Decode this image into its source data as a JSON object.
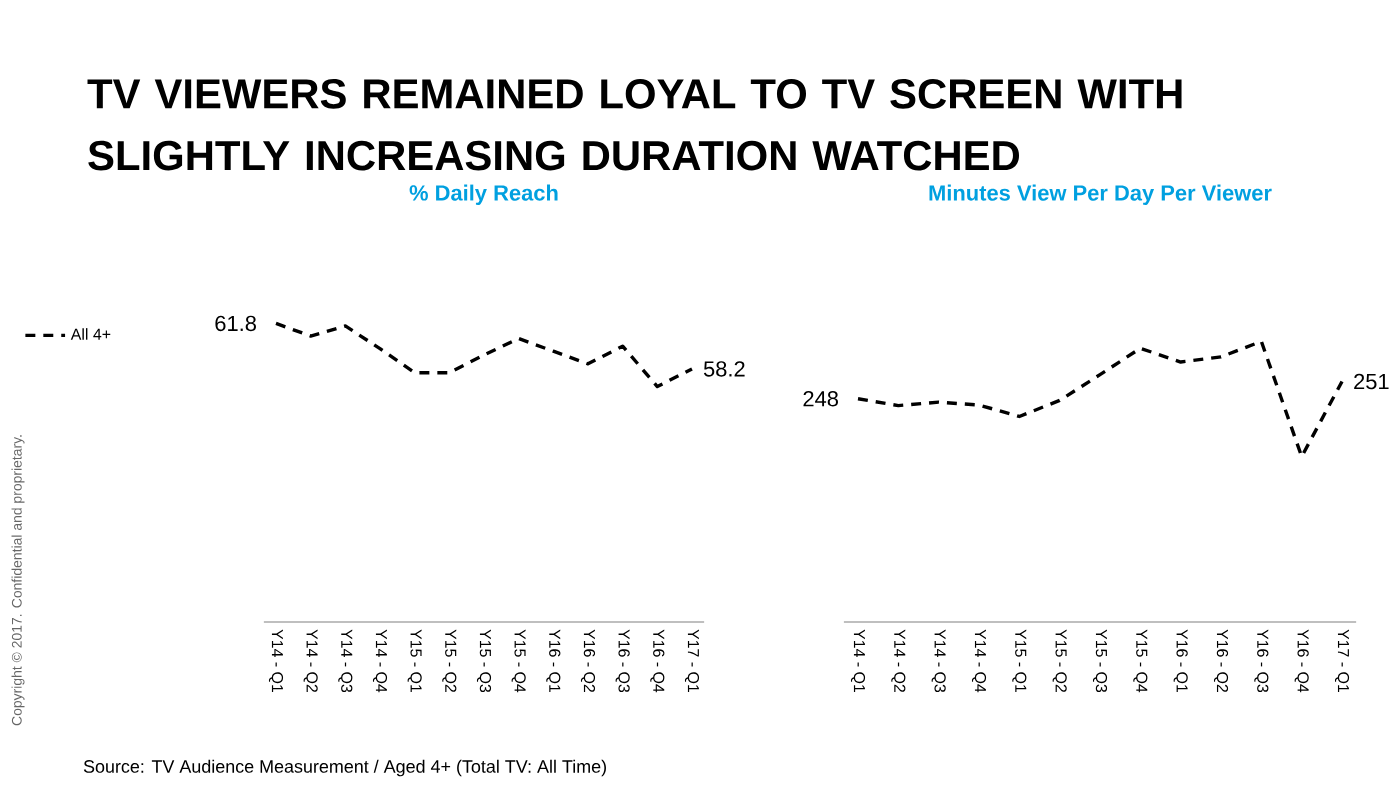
{
  "chart_data": [
    {
      "type": "line",
      "title": "% Daily Reach",
      "categories": [
        "Y14 - Q1",
        "Y14 - Q2",
        "Y14 - Q3",
        "Y14 - Q4",
        "Y15 - Q1",
        "Y15 - Q2",
        "Y15 - Q3",
        "Y15 - Q4",
        "Y16 - Q1",
        "Y16 - Q2",
        "Y16 - Q3",
        "Y16 - Q4",
        "Y17 - Q1"
      ],
      "series": [
        {
          "name": "All 4+",
          "color": "#000000",
          "values": [
            61.8,
            60.8,
            61.6,
            59.8,
            57.9,
            57.9,
            59.3,
            60.6,
            59.6,
            58.6,
            60.0,
            56.8,
            58.2
          ],
          "value_labels": [
            "61.8",
            null,
            null,
            null,
            null,
            null,
            null,
            null,
            null,
            null,
            null,
            null,
            "58.2"
          ]
        }
      ],
      "line_style": "dashed",
      "legend": "left",
      "annotations": [
        "TV VIEWERS REMAINED LOYAL TO TV SCREEN WITH SLIGHTLY INCREASING DURATION WATCHED",
        "Source: TV Audience Measurement  / Aged 4+ (Total TV: All Time)",
        "Copyright © 2017. Confidential and proprietary."
      ]
    },
    {
      "type": "line",
      "title": "Minutes View Per Day Per Viewer",
      "categories": [
        "Y14 - Q1",
        "Y14 - Q2",
        "Y14 - Q3",
        "Y14 - Q4",
        "Y15 - Q1",
        "Y15 - Q2",
        "Y15 - Q3",
        "Y15 - Q4",
        "Y16 - Q1",
        "Y16 - Q2",
        "Y16 - Q3",
        "Y16 - Q4",
        "Y17 - Q1"
      ],
      "series": [
        {
          "color": "#000000",
          "values": [
            248,
            246.8,
            247.4,
            246.9,
            244.9,
            247.7,
            252.2,
            256.8,
            254.4,
            255.3,
            258.0,
            237.9,
            251
          ],
          "value_labels": [
            "248",
            null,
            null,
            null,
            null,
            null,
            null,
            null,
            null,
            null,
            null,
            null,
            "251"
          ]
        }
      ],
      "line_style": "dashed"
    }
  ]
}
